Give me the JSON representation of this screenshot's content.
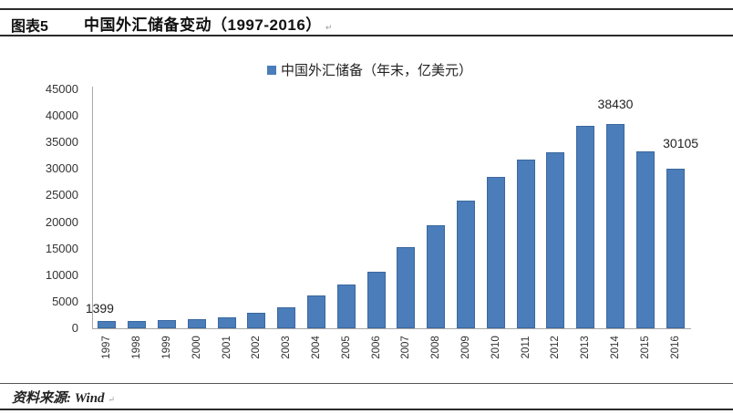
{
  "page": {
    "figure_label": "图表5",
    "title": "中国外汇储备变动（1997-2016）",
    "paragraph_mark": "↵",
    "source_text": "资料来源: Wind"
  },
  "chart_data": {
    "type": "bar",
    "title": "中国外汇储备变动（1997-2016）",
    "legend": "中国外汇储备（年末，亿美元）",
    "legend_position": "top-center",
    "xlabel": "",
    "ylabel": "",
    "ylim": [
      0,
      45000
    ],
    "ytick_step": 5000,
    "grid": false,
    "bar_color": "#4a7db9",
    "bar_border_color": "#3b689e",
    "axis_color": "#a8a8a8",
    "categories": [
      "1997",
      "1998",
      "1999",
      "2000",
      "2001",
      "2002",
      "2003",
      "2004",
      "2005",
      "2006",
      "2007",
      "2008",
      "2009",
      "2010",
      "2011",
      "2012",
      "2013",
      "2014",
      "2015",
      "2016"
    ],
    "values": [
      1399,
      1450,
      1547,
      1656,
      2122,
      2864,
      4033,
      6099,
      8189,
      10663,
      15282,
      19460,
      23992,
      28473,
      31811,
      33116,
      38213,
      38430,
      33304,
      30105
    ],
    "data_labels": [
      {
        "category": "1997",
        "text": "1399",
        "dx": -8,
        "gap": 5
      },
      {
        "category": "2014",
        "text": "38430",
        "dx": 0,
        "gap": 13
      },
      {
        "category": "2016",
        "text": "30105",
        "dx": 6,
        "gap": 19
      }
    ]
  }
}
